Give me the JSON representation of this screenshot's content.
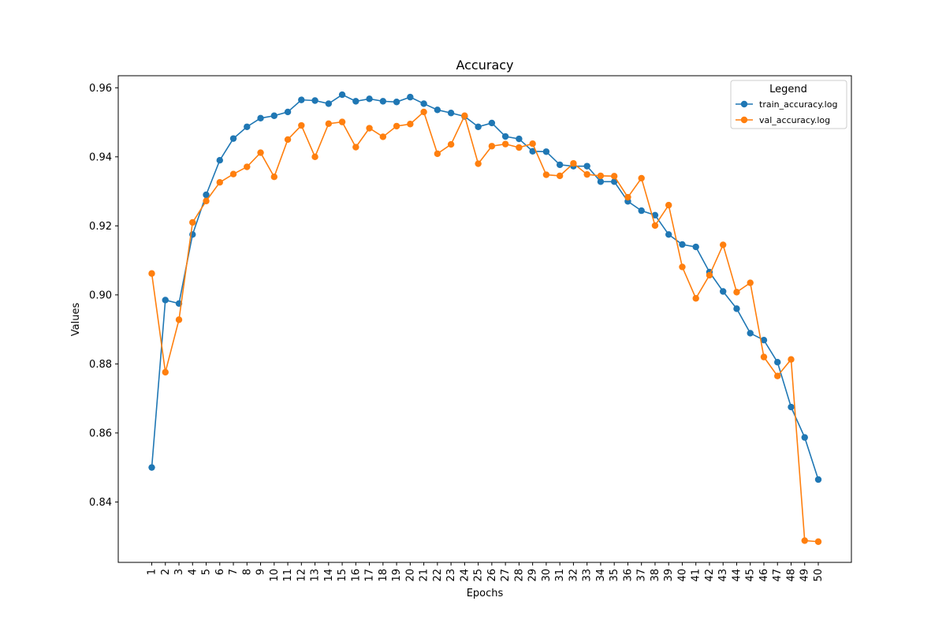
{
  "chart_data": {
    "type": "line",
    "title": "Accuracy",
    "xlabel": "Epochs",
    "ylabel": "Values",
    "x": [
      1,
      2,
      3,
      4,
      5,
      6,
      7,
      8,
      9,
      10,
      11,
      12,
      13,
      14,
      15,
      16,
      17,
      18,
      19,
      20,
      21,
      22,
      23,
      24,
      25,
      26,
      27,
      28,
      29,
      30,
      31,
      32,
      33,
      34,
      35,
      36,
      37,
      38,
      39,
      40,
      41,
      42,
      43,
      44,
      45,
      46,
      47,
      48,
      49,
      50
    ],
    "x_tick_labels": [
      "1",
      "2",
      "3",
      "4",
      "5",
      "6",
      "7",
      "8",
      "9",
      "10",
      "11",
      "12",
      "13",
      "14",
      "15",
      "16",
      "17",
      "18",
      "19",
      "20",
      "21",
      "22",
      "23",
      "24",
      "25",
      "26",
      "27",
      "28",
      "29",
      "30",
      "31",
      "32",
      "33",
      "34",
      "35",
      "36",
      "37",
      "38",
      "39",
      "40",
      "41",
      "42",
      "43",
      "44",
      "45",
      "46",
      "47",
      "48",
      "49",
      "50"
    ],
    "ylim": [
      0.8225,
      0.9635
    ],
    "y_ticks": [
      0.84,
      0.86,
      0.88,
      0.9,
      0.92,
      0.94,
      0.96
    ],
    "y_tick_labels": [
      "0.84",
      "0.86",
      "0.88",
      "0.90",
      "0.92",
      "0.94",
      "0.96"
    ],
    "grid": false,
    "legend": {
      "title": "Legend",
      "placement": "top-right"
    },
    "series": [
      {
        "name": "train_accuracy.log",
        "color": "#1f77b4",
        "marker": "circle",
        "values": [
          0.85,
          0.8985,
          0.8975,
          0.9175,
          0.929,
          0.939,
          0.9453,
          0.9487,
          0.9512,
          0.9519,
          0.953,
          0.9565,
          0.9563,
          0.9554,
          0.958,
          0.9561,
          0.9568,
          0.9561,
          0.9559,
          0.9573,
          0.9554,
          0.9536,
          0.9527,
          0.9517,
          0.9487,
          0.9498,
          0.9459,
          0.9452,
          0.9416,
          0.9415,
          0.9377,
          0.9373,
          0.9373,
          0.9328,
          0.9328,
          0.9271,
          0.9244,
          0.9231,
          0.9175,
          0.9146,
          0.9139,
          0.9066,
          0.901,
          0.896,
          0.8889,
          0.8869,
          0.8805,
          0.8675,
          0.8587,
          0.8465
        ]
      },
      {
        "name": "val_accuracy.log",
        "color": "#ff7f0e",
        "marker": "circle",
        "values": [
          0.9062,
          0.8776,
          0.8928,
          0.921,
          0.9272,
          0.9326,
          0.935,
          0.9371,
          0.9412,
          0.9342,
          0.945,
          0.9491,
          0.94,
          0.9496,
          0.9501,
          0.9428,
          0.9483,
          0.9458,
          0.9489,
          0.9495,
          0.953,
          0.9409,
          0.9436,
          0.9519,
          0.938,
          0.9431,
          0.9437,
          0.9427,
          0.9438,
          0.9348,
          0.9345,
          0.9381,
          0.9349,
          0.9345,
          0.9344,
          0.9283,
          0.9338,
          0.9201,
          0.926,
          0.9081,
          0.899,
          0.9057,
          0.9145,
          0.9008,
          0.9035,
          0.882,
          0.8765,
          0.8813,
          0.8288,
          0.8285
        ]
      }
    ]
  }
}
